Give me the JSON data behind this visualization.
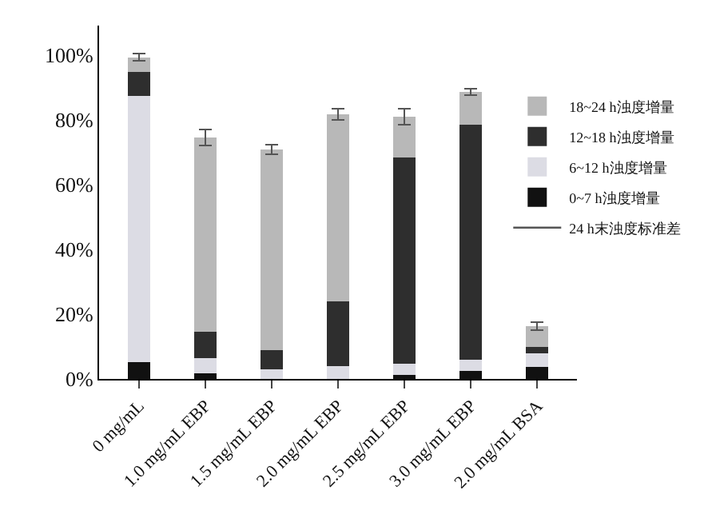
{
  "chart_data": {
    "type": "bar",
    "stacked": true,
    "categories": [
      "0 mg/mL",
      "1.0 mg/mL EBP",
      "1.5 mg/mL EBP",
      "2.0 mg/mL EBP",
      "2.5 mg/mL EBP",
      "3.0 mg/mL EBP",
      "2.0 mg/mL BSA"
    ],
    "series": [
      {
        "name": "0~7 h浊度增量",
        "color": "#111111",
        "values": [
          5.2,
          1.7,
          null,
          null,
          1.3,
          2.5,
          3.7
        ]
      },
      {
        "name": "6~12 h浊度增量",
        "color": "#dcdce4",
        "values": [
          82.2,
          4.7,
          3.0,
          3.9,
          3.4,
          3.4,
          4.2
        ]
      },
      {
        "name": "12~18 h浊度增量",
        "color": "#2e2e2e",
        "values": [
          7.2,
          8.1,
          5.8,
          19.9,
          63.6,
          72.5,
          1.9
        ]
      },
      {
        "name": "18~24 h浊度增量",
        "color": "#b8b8b8",
        "values": [
          4.6,
          60.0,
          62.0,
          57.8,
          12.6,
          10.1,
          6.4
        ],
        "errors": [
          1.1,
          2.5,
          1.5,
          1.7,
          2.4,
          0.9,
          1.2
        ]
      }
    ],
    "annotations": [
      "24 h末浊度标准差"
    ],
    "ylim": [
      0,
      109
    ],
    "yticks": [
      {
        "value": 0,
        "label": "0%"
      },
      {
        "value": 20,
        "label": "20%"
      },
      {
        "value": 40,
        "label": "40%"
      },
      {
        "value": 60,
        "label": "60%"
      },
      {
        "value": 80,
        "label": "80%"
      },
      {
        "value": 100,
        "label": "100%"
      }
    ],
    "legend": "right"
  }
}
